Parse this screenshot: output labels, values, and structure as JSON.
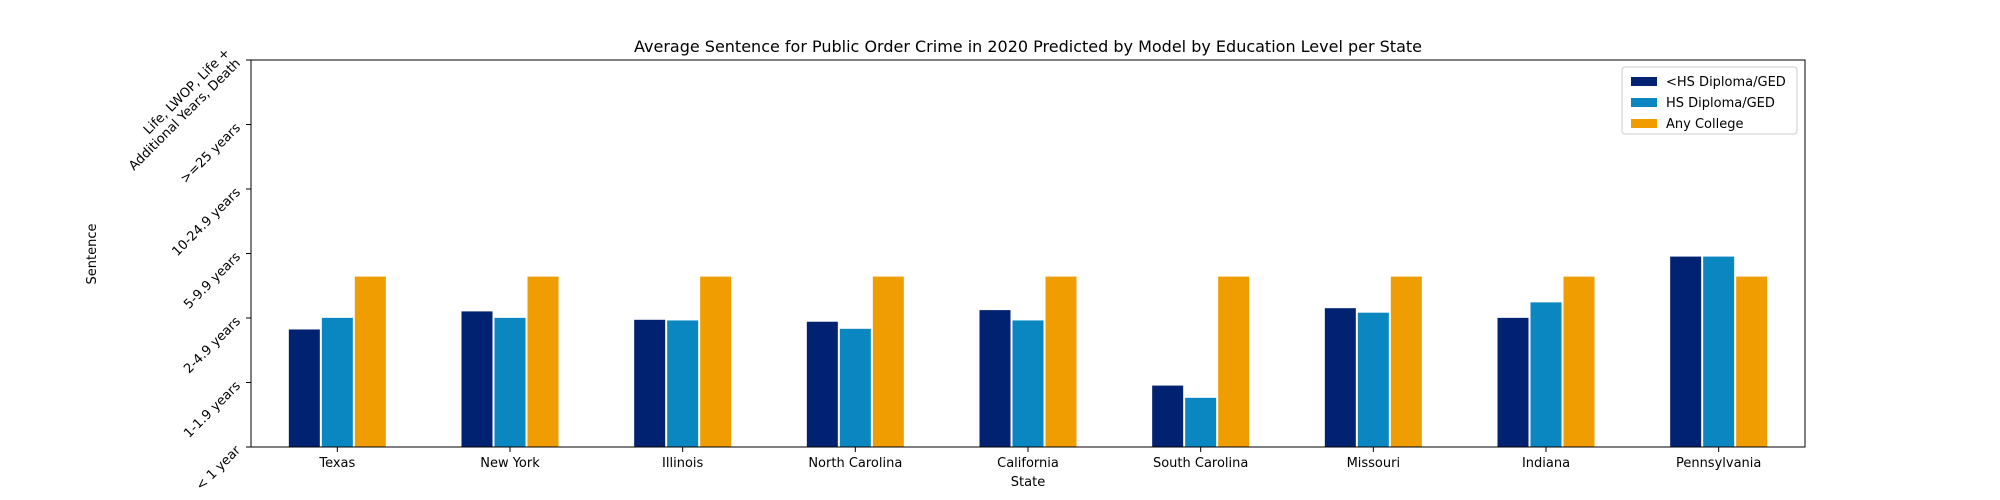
{
  "chart_data": {
    "type": "bar",
    "title": "Average Sentence for Public Order Crime in 2020 Predicted by Model by Education Level per State",
    "xlabel": "State",
    "ylabel": "Sentence",
    "categories": [
      "Texas",
      "New York",
      "Illinois",
      "North Carolina",
      "California",
      "South Carolina",
      "Missouri",
      "Indiana",
      "Pennsylvania"
    ],
    "y_ticks": [
      "< 1 year",
      "1-1.9 years",
      "2-4.9 years",
      "5-9.9 years",
      "10-24.9 years",
      ">=25 years",
      "Life, LWOP, Life +\nAdditional Years, Death"
    ],
    "ylim": [
      0,
      6
    ],
    "grid": false,
    "legend_position": "top-right",
    "series": [
      {
        "name": "<HS Diploma/GED",
        "color": "#002270",
        "values": [
          1.83,
          2.11,
          1.98,
          1.95,
          2.13,
          0.96,
          2.16,
          2.01,
          2.96
        ]
      },
      {
        "name": "HS Diploma/GED",
        "color": "#0a86c0",
        "values": [
          2.01,
          2.01,
          1.97,
          1.84,
          1.97,
          0.77,
          2.09,
          2.25,
          2.96
        ]
      },
      {
        "name": "Any College",
        "color": "#ef9d00",
        "values": [
          2.65,
          2.65,
          2.65,
          2.65,
          2.65,
          2.65,
          2.65,
          2.65,
          2.65
        ]
      }
    ]
  }
}
